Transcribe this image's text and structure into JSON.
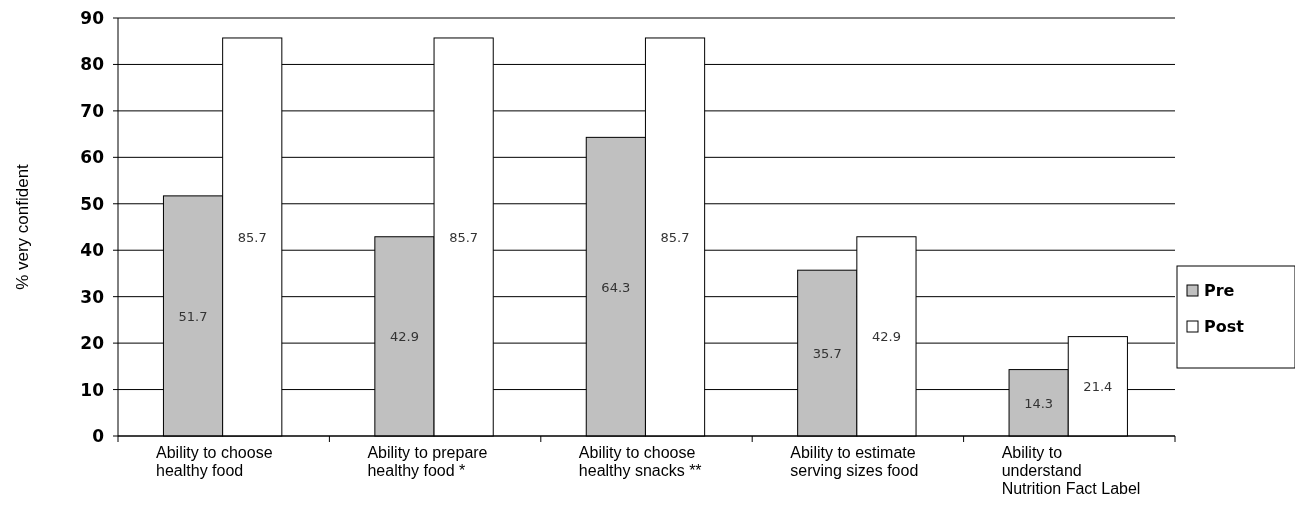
{
  "chart_data": {
    "type": "bar",
    "ylabel": "% very confident",
    "categories": [
      "Ability to choose healthy food",
      "Ability to prepare healthy food *",
      "Ability to choose healthy snacks **",
      "Ability to estimate serving sizes food",
      "Ability to understand Nutrition Fact Label"
    ],
    "series": [
      {
        "name": "Pre",
        "color": "#c0c0c0",
        "values": [
          51.7,
          42.9,
          64.3,
          35.7,
          14.3
        ]
      },
      {
        "name": "Post",
        "color": "#ffffff",
        "values": [
          85.7,
          85.7,
          85.7,
          42.9,
          21.4
        ]
      }
    ],
    "ylim": [
      0,
      90
    ],
    "yticks": [
      0,
      10,
      20,
      30,
      40,
      50,
      60,
      70,
      80,
      90
    ],
    "grid": "y",
    "legend": "right",
    "data_labels": true
  }
}
